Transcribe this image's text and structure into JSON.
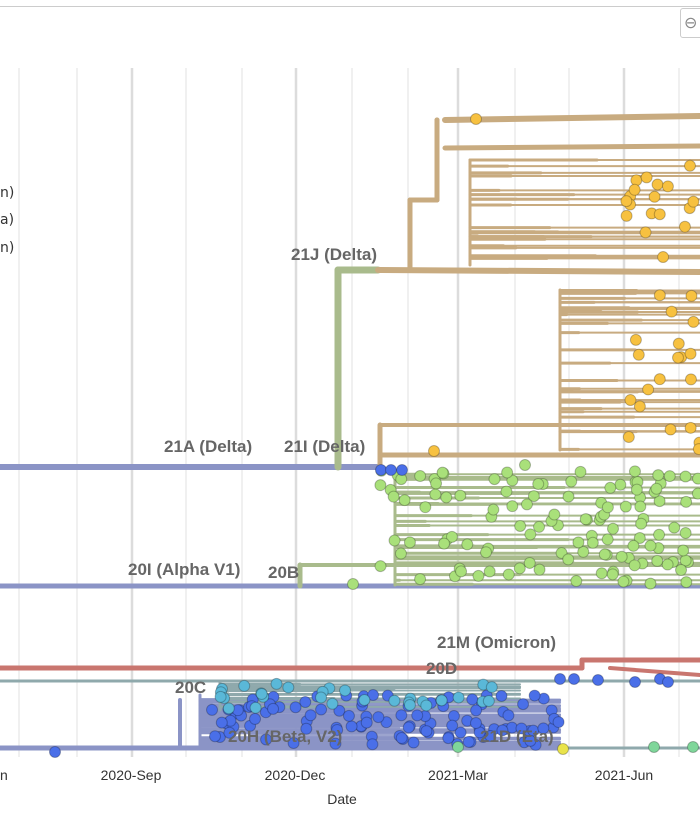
{
  "legend_fragments": [
    "n)",
    "a)",
    "n)"
  ],
  "zoom_button_icon": "zoom-out-icon",
  "axis": {
    "label": "Date",
    "ticks": [
      "n",
      "2020-Sep",
      "2020-Dec",
      "2021-Mar",
      "2021-Jun"
    ]
  },
  "clade_labels": {
    "delta_21j": "21J (Delta)",
    "delta_21a": "21A (Delta)",
    "delta_21i": "21I (Delta)",
    "alpha": "20I (Alpha V1)",
    "c20b": "20B",
    "omicron": "21M (Omicron)",
    "c20d": "20D",
    "c20c": "20C",
    "beta": "20H (Beta, V2)",
    "eta": "21D (Eta)"
  },
  "colors": {
    "delta_branch": "#c8ab80",
    "delta_tip": "#f7c140",
    "alpha_branch": "#a9bb8c",
    "alpha_tip": "#a9e07a",
    "base_branch": "#8b94c6",
    "base_tip": "#4a6fe8",
    "omicron_branch": "#c9766f",
    "teal_branch": "#8fa9ac",
    "teal_tip": "#5ab8d8",
    "green_tip": "#7fd69a",
    "yellow_tip": "#e9e34a"
  }
}
